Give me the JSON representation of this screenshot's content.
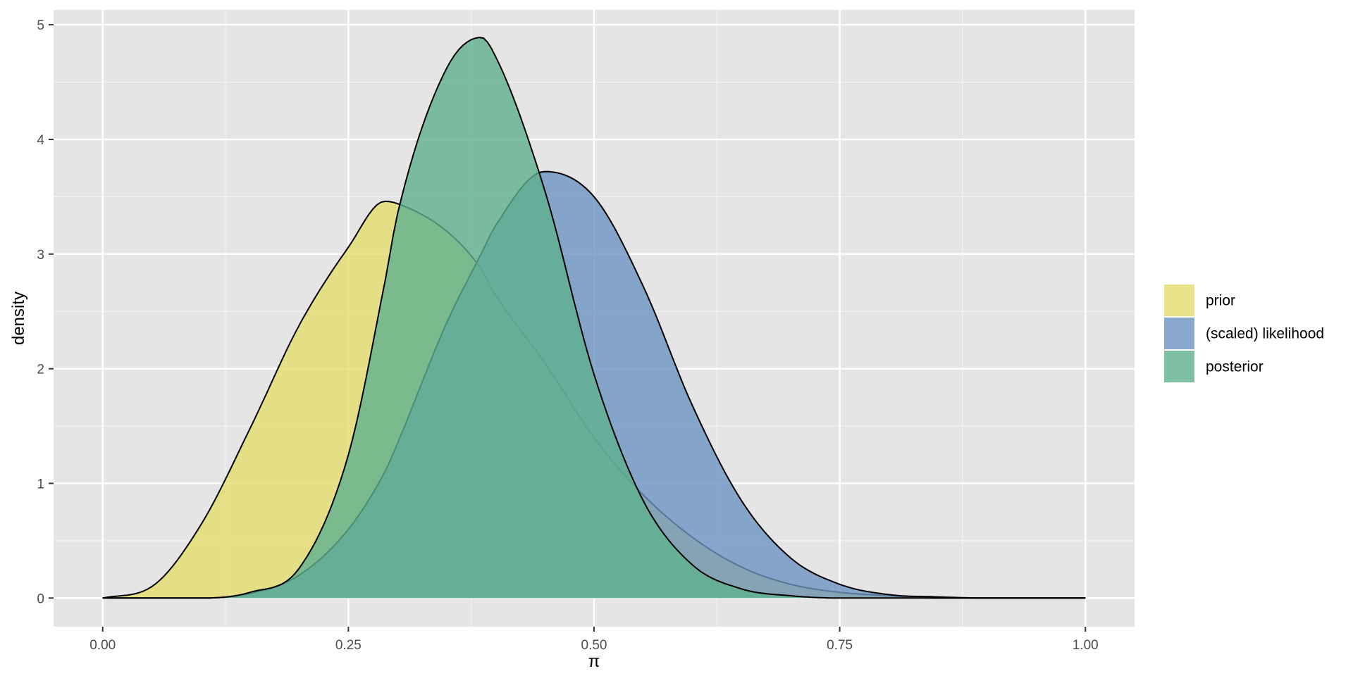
{
  "chart_data": {
    "type": "area",
    "xlabel": "π",
    "ylabel": "density",
    "xlim": [
      -0.05,
      1.05
    ],
    "ylim": [
      -0.25,
      5.13
    ],
    "x_ticks": [
      "0.00",
      "0.25",
      "0.50",
      "0.75",
      "1.00"
    ],
    "y_ticks": [
      "0",
      "1",
      "2",
      "3",
      "4",
      "5"
    ],
    "grid": true,
    "background": "#e5e5e5",
    "legend_position": "right",
    "x": [
      0.0,
      0.05,
      0.1,
      0.15,
      0.2,
      0.25,
      0.287,
      0.3,
      0.35,
      0.385,
      0.4,
      0.45,
      0.5,
      0.55,
      0.6,
      0.65,
      0.7,
      0.75,
      0.8,
      0.85,
      0.9,
      0.95,
      1.0
    ],
    "series": [
      {
        "name": "prior",
        "color": "#e4dc6b",
        "values": [
          0.0,
          0.1,
          0.64,
          1.48,
          2.38,
          3.06,
          3.46,
          3.44,
          3.2,
          2.87,
          2.64,
          2.05,
          1.4,
          0.9,
          0.53,
          0.27,
          0.12,
          0.05,
          0.02,
          0.0,
          0.0,
          0.0,
          0.0
        ]
      },
      {
        "name": "(scaled) likelihood",
        "color": "#6b93c2",
        "values": [
          0.0,
          0.0,
          0.0,
          0.04,
          0.2,
          0.6,
          1.1,
          1.35,
          2.4,
          3.0,
          3.25,
          3.72,
          3.5,
          2.72,
          1.68,
          0.85,
          0.35,
          0.12,
          0.03,
          0.01,
          0.0,
          0.0,
          0.0
        ]
      },
      {
        "name": "posterior",
        "color": "#5fb08f",
        "values": [
          0.0,
          0.0,
          0.0,
          0.05,
          0.26,
          1.25,
          2.75,
          3.35,
          4.62,
          4.89,
          4.72,
          3.55,
          1.95,
          0.85,
          0.29,
          0.08,
          0.02,
          0.0,
          0.0,
          0.0,
          0.0,
          0.0,
          0.0
        ]
      }
    ]
  }
}
